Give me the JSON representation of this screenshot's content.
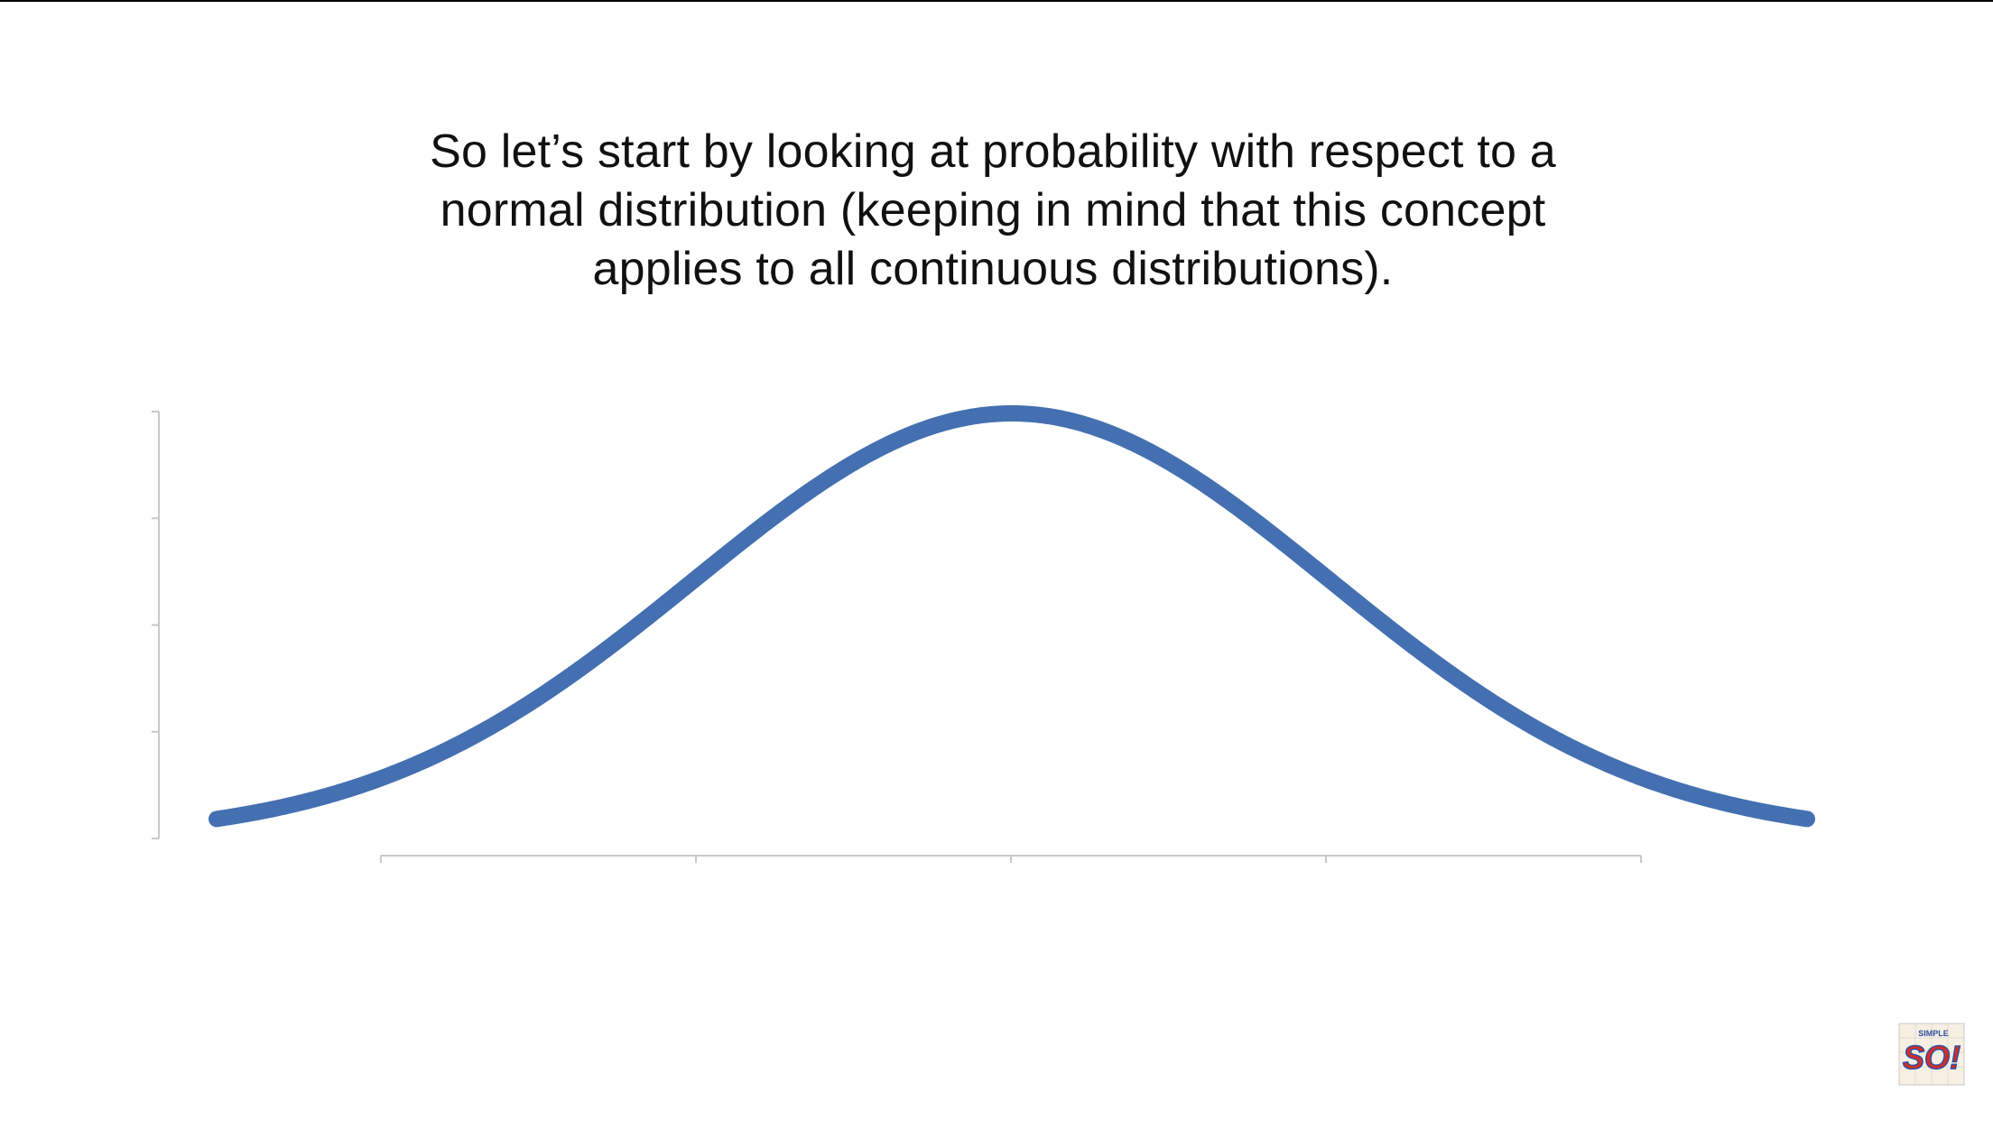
{
  "caption": {
    "lines": [
      "So let’s start by looking at probability with respect to a",
      "normal distribution (keeping in mind that this concept",
      "applies to all continuous distributions)."
    ]
  },
  "chart_data": {
    "type": "line",
    "series": [
      {
        "mean": 0,
        "sd": 1,
        "x_range": [
          -2.5,
          2.5
        ],
        "color": "#4470b1"
      }
    ],
    "x_ticks": [
      -2,
      -1,
      0,
      1,
      2
    ],
    "y_ticks": 5,
    "xlabel": "",
    "ylabel": "",
    "tick_labels_shown": false,
    "grid": false,
    "legend": "none"
  },
  "logo": {
    "text": "SO!",
    "small_text": "SIMPLE"
  },
  "colors": {
    "curve": "#4470b1",
    "axis": "#c8c8c8",
    "text": "#111111",
    "logo_red": "#d92b25",
    "logo_blue": "#2d4fa0"
  }
}
